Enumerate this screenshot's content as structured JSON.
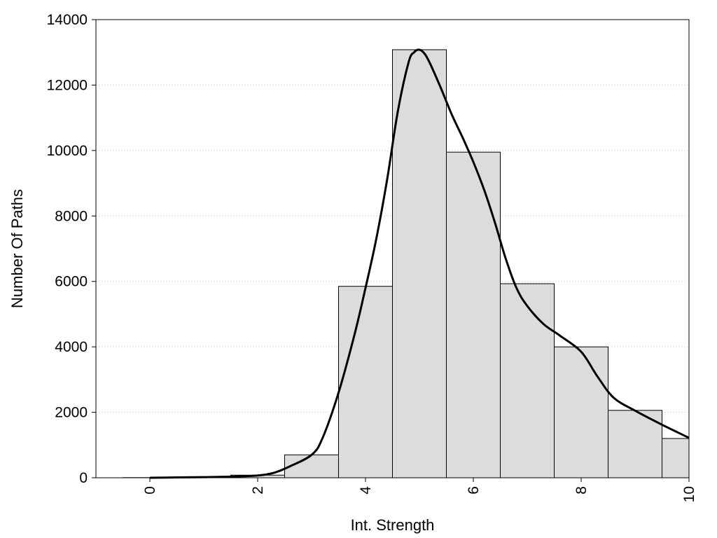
{
  "chart_data": {
    "type": "bar",
    "subtype": "histogram with density curve",
    "title": "",
    "xlabel": "Int. Strength",
    "ylabel": "Number Of Paths",
    "xlim": [
      -1,
      10
    ],
    "ylim": [
      0,
      14000
    ],
    "x_ticks": [
      0,
      2,
      4,
      6,
      8,
      10
    ],
    "y_ticks": [
      0,
      2000,
      4000,
      6000,
      8000,
      10000,
      12000,
      14000
    ],
    "grid": "horizontal dotted",
    "legend": "none",
    "bar_width": 1,
    "bars": [
      {
        "x": 0,
        "value": 5
      },
      {
        "x": 1,
        "value": 15
      },
      {
        "x": 2,
        "value": 80
      },
      {
        "x": 3,
        "value": 700
      },
      {
        "x": 4,
        "value": 5850
      },
      {
        "x": 5,
        "value": 13080
      },
      {
        "x": 6,
        "value": 9950
      },
      {
        "x": 7,
        "value": 5930
      },
      {
        "x": 8,
        "value": 4000
      },
      {
        "x": 9,
        "value": 2060
      },
      {
        "x": 10,
        "value": 1200
      }
    ],
    "curve": {
      "x": [
        0,
        0.5,
        1,
        1.5,
        2,
        2.3,
        2.6,
        3,
        3.2,
        3.5,
        3.8,
        4,
        4.2,
        4.4,
        4.6,
        4.8,
        4.9,
        5,
        5.1,
        5.2,
        5.4,
        5.6,
        5.8,
        6,
        6.2,
        6.4,
        6.6,
        6.8,
        7,
        7.3,
        7.6,
        8,
        8.3,
        8.6,
        9,
        9.5,
        10
      ],
      "y": [
        0,
        10,
        20,
        35,
        70,
        150,
        350,
        700,
        1200,
        2600,
        4400,
        5800,
        7300,
        9100,
        11200,
        12700,
        13000,
        13080,
        12950,
        12650,
        11900,
        11100,
        10400,
        9650,
        8800,
        7800,
        6700,
        5800,
        5250,
        4700,
        4350,
        3850,
        3100,
        2450,
        2050,
        1620,
        1220
      ]
    },
    "colors": {
      "bar_fill": "#dcdcdc",
      "bar_stroke": "#000000",
      "curve": "#000000",
      "grid": "#c8c8c8"
    }
  }
}
